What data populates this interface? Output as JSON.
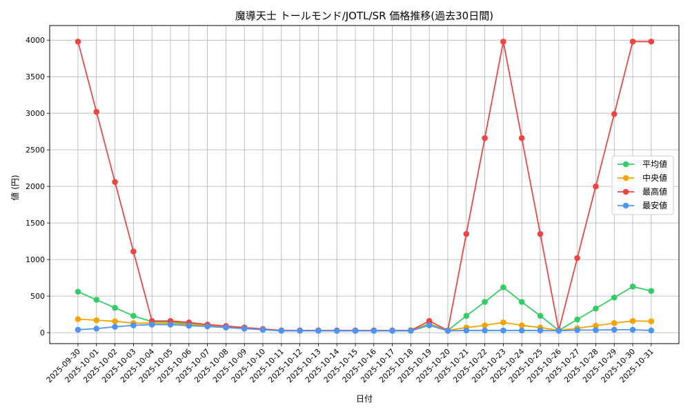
{
  "chart_data": {
    "type": "line",
    "title": "魔導天士 トールモンド/JOTL/SR 価格推移(過去30日間)",
    "xlabel": "日付",
    "ylabel": "値 (円)",
    "ylim": [
      -150,
      4200
    ],
    "yticks": [
      0,
      500,
      1000,
      1500,
      2000,
      2500,
      3000,
      3500,
      4000
    ],
    "grid": true,
    "legend_position": "right",
    "categories": [
      "2025-09-30",
      "2025-10-01",
      "2025-10-02",
      "2025-10-03",
      "2025-10-04",
      "2025-10-05",
      "2025-10-06",
      "2025-10-07",
      "2025-10-08",
      "2025-10-09",
      "2025-10-10",
      "2025-10-11",
      "2025-10-12",
      "2025-10-13",
      "2025-10-14",
      "2025-10-15",
      "2025-10-16",
      "2025-10-17",
      "2025-10-18",
      "2025-10-19",
      "2025-10-20",
      "2025-10-21",
      "2025-10-22",
      "2025-10-23",
      "2025-10-24",
      "2025-10-25",
      "2025-10-26",
      "2025-10-27",
      "2025-10-28",
      "2025-10-29",
      "2025-10-30",
      "2025-10-31"
    ],
    "series": [
      {
        "name": "平均値",
        "color": "#33cc66",
        "values": [
          560,
          450,
          340,
          230,
          150,
          150,
          120,
          100,
          80,
          60,
          40,
          30,
          30,
          30,
          30,
          30,
          30,
          30,
          30,
          120,
          30,
          230,
          420,
          620,
          420,
          230,
          30,
          180,
          330,
          480,
          630,
          570
        ]
      },
      {
        "name": "中央値",
        "color": "#f5a300",
        "values": [
          185,
          170,
          155,
          130,
          130,
          130,
          110,
          95,
          75,
          60,
          40,
          30,
          30,
          30,
          30,
          30,
          30,
          30,
          30,
          110,
          30,
          70,
          100,
          140,
          100,
          70,
          30,
          60,
          95,
          130,
          160,
          155
        ]
      },
      {
        "name": "最高値",
        "color": "#ef4444",
        "values": [
          3980,
          3020,
          2060,
          1110,
          160,
          160,
          140,
          110,
          90,
          70,
          50,
          30,
          30,
          30,
          30,
          30,
          30,
          30,
          30,
          160,
          30,
          1350,
          2660,
          3980,
          2660,
          1350,
          30,
          1020,
          2000,
          2990,
          3980,
          3980
        ]
      },
      {
        "name": "最安値",
        "color": "#4d94f5",
        "values": [
          40,
          55,
          80,
          100,
          110,
          110,
          95,
          85,
          70,
          55,
          40,
          25,
          25,
          25,
          25,
          25,
          25,
          25,
          25,
          100,
          25,
          30,
          30,
          30,
          30,
          30,
          25,
          35,
          35,
          40,
          40,
          30
        ]
      }
    ]
  }
}
